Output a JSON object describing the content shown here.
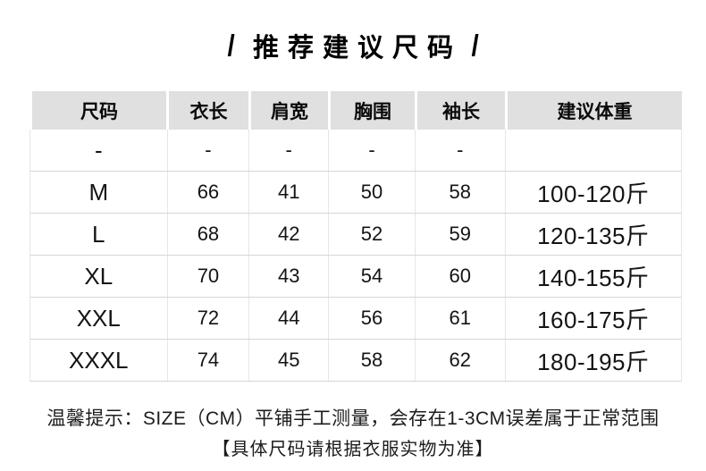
{
  "title": {
    "left_slash": "/",
    "text": "推荐建议尺码",
    "right_slash": "/"
  },
  "chart_data": {
    "type": "table",
    "title": "推荐建议尺码",
    "columns": [
      "尺码",
      "衣长",
      "肩宽",
      "胸围",
      "袖长",
      "建议体重"
    ],
    "unit_note": "SIZE（CM）",
    "rows": [
      {
        "size": "-",
        "length": "-",
        "shoulder": "-",
        "chest": "-",
        "sleeve": "-",
        "weight": ""
      },
      {
        "size": "M",
        "length": "66",
        "shoulder": "41",
        "chest": "50",
        "sleeve": "58",
        "weight": "100-120斤"
      },
      {
        "size": "L",
        "length": "68",
        "shoulder": "42",
        "chest": "52",
        "sleeve": "59",
        "weight": "120-135斤"
      },
      {
        "size": "XL",
        "length": "70",
        "shoulder": "43",
        "chest": "54",
        "sleeve": "60",
        "weight": "140-155斤"
      },
      {
        "size": "XXL",
        "length": "72",
        "shoulder": "44",
        "chest": "56",
        "sleeve": "61",
        "weight": "160-175斤"
      },
      {
        "size": "XXXL",
        "length": "74",
        "shoulder": "45",
        "chest": "58",
        "sleeve": "62",
        "weight": "180-195斤"
      }
    ],
    "footnotes": [
      "温馨提示：SIZE（CM）平铺手工测量，会存在1-3CM误差属于正常范围",
      "【具体尺码请根据衣服实物为准】"
    ]
  },
  "footer": {
    "line1": "温馨提示：SIZE（CM）平铺手工测量，会存在1-3CM误差属于正常范围",
    "line2": "【具体尺码请根据衣服实物为准】"
  },
  "colors": {
    "header_bg": "#e0e0e0",
    "grid_line": "#d6d6d6",
    "column_line": "#e6e6e6",
    "text": "#111111",
    "background": "#ffffff"
  }
}
